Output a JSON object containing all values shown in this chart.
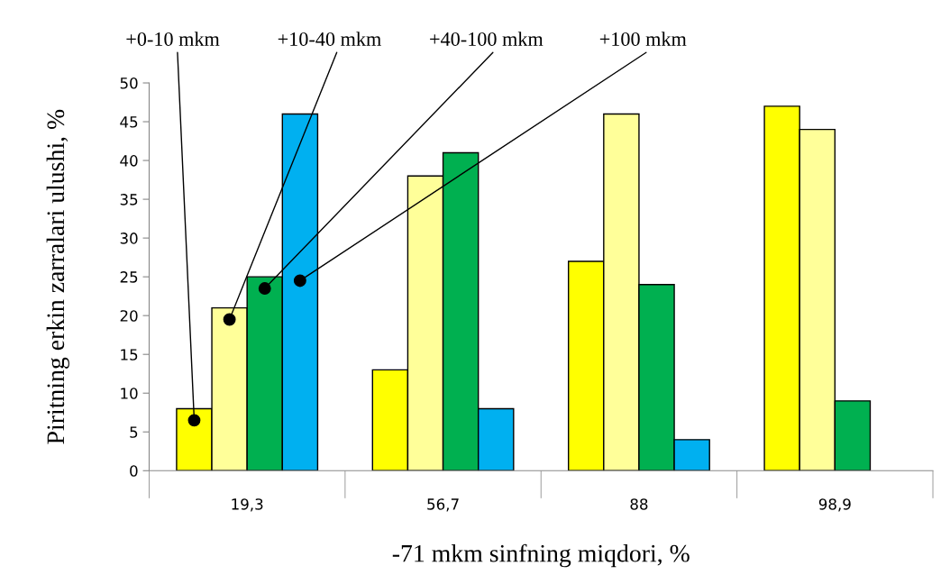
{
  "chart_data": {
    "type": "bar",
    "xlabel": "-71 mkm sinfning miqdori, %",
    "ylabel": "Piritning erkin zarralari ulushi, %",
    "categories": [
      "19,3",
      "56,7",
      "88",
      "98,9"
    ],
    "series": [
      {
        "name": "+0-10 mkm",
        "color": "#ffff00",
        "values": [
          8,
          13,
          27,
          47
        ]
      },
      {
        "name": "+10-40 mkm",
        "color": "#ffff99",
        "values": [
          21,
          38,
          46,
          44
        ]
      },
      {
        "name": "+40-100 mkm",
        "color": "#00b050",
        "values": [
          25,
          41,
          24,
          9
        ]
      },
      {
        "name": "+100 mkm",
        "color": "#00b0f0",
        "values": [
          46,
          8,
          4,
          null
        ]
      }
    ],
    "ylim": [
      0,
      50
    ],
    "yticks": [
      0,
      5,
      10,
      15,
      20,
      25,
      30,
      35,
      40,
      45,
      50
    ],
    "grid": false
  }
}
